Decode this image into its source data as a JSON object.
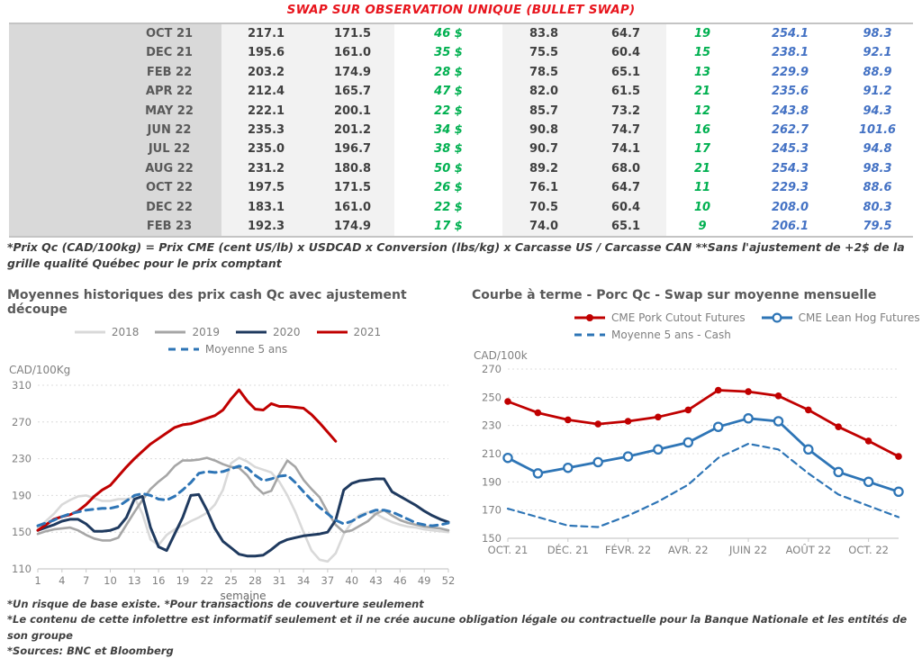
{
  "title": "SWAP SUR OBSERVATION UNIQUE (BULLET SWAP)",
  "colors": {
    "title_red": "#e8151d",
    "positive_green": "#00b050",
    "futures_blue": "#4472c4",
    "red_series": "#c00000",
    "navy_series": "#1f3a5f",
    "blue_dashed": "#2e75b6",
    "gray_2019": "#a6a6a6",
    "light_gray_2018": "#d9d9d9"
  },
  "table": {
    "rows": [
      {
        "month": "OCT 21",
        "cells": [
          "217.1",
          "171.5",
          "46 $",
          "83.8",
          "64.7",
          "19",
          "254.1",
          "98.3"
        ]
      },
      {
        "month": "DEC 21",
        "cells": [
          "195.6",
          "161.0",
          "35 $",
          "75.5",
          "60.4",
          "15",
          "238.1",
          "92.1"
        ]
      },
      {
        "month": "FEB 22",
        "cells": [
          "203.2",
          "174.9",
          "28 $",
          "78.5",
          "65.1",
          "13",
          "229.9",
          "88.9"
        ]
      },
      {
        "month": "APR 22",
        "cells": [
          "212.4",
          "165.7",
          "47 $",
          "82.0",
          "61.5",
          "21",
          "235.6",
          "91.2"
        ]
      },
      {
        "month": "MAY 22",
        "cells": [
          "222.1",
          "200.1",
          "22 $",
          "85.7",
          "73.2",
          "12",
          "243.8",
          "94.3"
        ]
      },
      {
        "month": "JUN 22",
        "cells": [
          "235.3",
          "201.2",
          "34 $",
          "90.8",
          "74.7",
          "16",
          "262.7",
          "101.6"
        ]
      },
      {
        "month": "JUL 22",
        "cells": [
          "235.0",
          "196.7",
          "38 $",
          "90.7",
          "74.1",
          "17",
          "245.3",
          "94.8"
        ]
      },
      {
        "month": "AUG 22",
        "cells": [
          "231.2",
          "180.8",
          "50 $",
          "89.2",
          "68.0",
          "21",
          "254.3",
          "98.3"
        ]
      },
      {
        "month": "OCT 22",
        "cells": [
          "197.5",
          "171.5",
          "26 $",
          "76.1",
          "64.7",
          "11",
          "229.3",
          "88.6"
        ]
      },
      {
        "month": "DEC 22",
        "cells": [
          "183.1",
          "161.0",
          "22 $",
          "70.5",
          "60.4",
          "10",
          "208.0",
          "80.3"
        ]
      },
      {
        "month": "FEB 23",
        "cells": [
          "192.3",
          "174.9",
          "17 $",
          "74.0",
          "65.1",
          "9",
          "206.1",
          "79.5"
        ]
      }
    ]
  },
  "table_footnote": "*Prix Qc (CAD/100kg) = Prix CME (cent US/lb) x USDCAD x Conversion (lbs/kg) x Carcasse US / Carcasse CAN **Sans l'ajustement de +2$ de la grille qualité Québec pour le prix comptant",
  "chart_data": [
    {
      "type": "line",
      "title": "Moyennes historiques des prix cash Qc avec ajustement découpe",
      "y_unit": "CAD/100Kg",
      "xlabel": "semaine",
      "ylim": [
        110,
        310
      ],
      "yticks": [
        110,
        150,
        190,
        230,
        270,
        310
      ],
      "x_count": 52,
      "xticks": [
        {
          "i": 0,
          "label": "1"
        },
        {
          "i": 3,
          "label": "4"
        },
        {
          "i": 6,
          "label": "7"
        },
        {
          "i": 9,
          "label": "10"
        },
        {
          "i": 12,
          "label": "13"
        },
        {
          "i": 15,
          "label": "16"
        },
        {
          "i": 18,
          "label": "19"
        },
        {
          "i": 21,
          "label": "22"
        },
        {
          "i": 24,
          "label": "25"
        },
        {
          "i": 27,
          "label": "28"
        },
        {
          "i": 30,
          "label": "31"
        },
        {
          "i": 33,
          "label": "34"
        },
        {
          "i": 36,
          "label": "37"
        },
        {
          "i": 39,
          "label": "40"
        },
        {
          "i": 42,
          "label": "43"
        },
        {
          "i": 45,
          "label": "46"
        },
        {
          "i": 48,
          "label": "49"
        },
        {
          "i": 51,
          "label": "52"
        }
      ],
      "grid": true,
      "legend_position": "top",
      "series": [
        {
          "name": "2018",
          "color": "#d9d9d9",
          "width": 2.6,
          "values": [
            155,
            162,
            170,
            180,
            185,
            189,
            190,
            187,
            184,
            184,
            186,
            186,
            188,
            170,
            142,
            136,
            147,
            153,
            157,
            162,
            166,
            171,
            180,
            196,
            225,
            231,
            227,
            221,
            218,
            215,
            205,
            190,
            172,
            150,
            130,
            120,
            118,
            127,
            148,
            161,
            169,
            172,
            170,
            165,
            161,
            158,
            156,
            155,
            153,
            152,
            151,
            150
          ]
        },
        {
          "name": "2019",
          "color": "#a6a6a6",
          "width": 2.6,
          "values": [
            148,
            151,
            153,
            154,
            155,
            152,
            147,
            143,
            141,
            141,
            144,
            158,
            172,
            185,
            197,
            205,
            212,
            222,
            228,
            228,
            229,
            231,
            228,
            224,
            221,
            220,
            212,
            200,
            192,
            195,
            213,
            228,
            221,
            207,
            197,
            188,
            172,
            158,
            150,
            152,
            157,
            162,
            170,
            174,
            168,
            163,
            160,
            158,
            156,
            155,
            154,
            152
          ]
        },
        {
          "name": "2020",
          "color": "#1f3a5f",
          "width": 3,
          "values": [
            152,
            155,
            158,
            162,
            164,
            164,
            159,
            151,
            151,
            152,
            155,
            166,
            186,
            189,
            155,
            134,
            130,
            148,
            166,
            190,
            191,
            174,
            154,
            140,
            133,
            126,
            124,
            124,
            125,
            131,
            138,
            142,
            144,
            146,
            147,
            148,
            150,
            163,
            196,
            203,
            206,
            207,
            208,
            208,
            194,
            189,
            184,
            179,
            173,
            168,
            164,
            161
          ]
        },
        {
          "name": "2021",
          "color": "#c00000",
          "width": 3,
          "values": [
            152,
            158,
            164,
            167,
            169,
            173,
            180,
            189,
            196,
            201,
            211,
            221,
            230,
            238,
            246,
            252,
            258,
            264,
            267,
            268,
            271,
            274,
            277,
            283,
            295,
            305,
            293,
            284,
            283,
            290,
            287,
            287,
            286,
            285,
            278,
            269,
            259,
            249,
            null,
            null,
            null,
            null,
            null,
            null,
            null,
            null,
            null,
            null,
            null,
            null,
            null,
            null
          ]
        },
        {
          "name": "Moyenne 5 ans",
          "color": "#2e75b6",
          "width": 3,
          "dash": "8,6",
          "values": [
            157,
            160,
            163,
            167,
            170,
            172,
            174,
            175,
            176,
            176,
            178,
            184,
            190,
            192,
            190,
            186,
            185,
            189,
            196,
            204,
            214,
            216,
            215,
            216,
            219,
            222,
            220,
            212,
            206,
            208,
            211,
            212,
            204,
            194,
            185,
            177,
            170,
            163,
            159,
            162,
            167,
            171,
            174,
            174,
            172,
            168,
            164,
            160,
            158,
            157,
            158,
            160
          ]
        }
      ]
    },
    {
      "type": "line",
      "title": "Courbe à terme - Porc Qc - Swap sur moyenne mensuelle",
      "y_unit": "CAD/100k",
      "xlabel": "",
      "ylim": [
        150,
        270
      ],
      "yticks": [
        150,
        170,
        190,
        210,
        230,
        250,
        270
      ],
      "x_count": 14,
      "xticks": [
        {
          "i": 0,
          "label": "OCT. 21"
        },
        {
          "i": 2,
          "label": "DÉC. 21"
        },
        {
          "i": 4,
          "label": "FÉVR. 22"
        },
        {
          "i": 6,
          "label": "AVR. 22"
        },
        {
          "i": 8,
          "label": "JUIN 22"
        },
        {
          "i": 10,
          "label": "AOÛT 22"
        },
        {
          "i": 12,
          "label": "OCT. 22"
        }
      ],
      "grid": true,
      "legend_position": "top",
      "series": [
        {
          "name": "CME Pork Cutout Futures",
          "color": "#c00000",
          "width": 2.8,
          "marker": "filled",
          "values": [
            247,
            239,
            234,
            231,
            233,
            236,
            241,
            255,
            254,
            251,
            241,
            229,
            219,
            208
          ]
        },
        {
          "name": "CME Lean Hog Futures",
          "color": "#2e75b6",
          "width": 2.8,
          "marker": "open",
          "values": [
            207,
            196,
            200,
            204,
            208,
            213,
            218,
            229,
            235,
            233,
            213,
            197,
            190,
            183
          ]
        },
        {
          "name": "Moyenne 5 ans - Cash",
          "color": "#2e75b6",
          "width": 2.2,
          "dash": "7,5",
          "values": [
            171,
            165,
            159,
            158,
            166,
            176,
            188,
            207,
            217,
            213,
            196,
            181,
            173,
            165
          ]
        }
      ]
    }
  ],
  "footnotes": [
    "*Un risque de base existe. *Pour transactions de couverture seulement",
    "*Le contenu de cette infolettre est informatif seulement et il ne crée aucune obligation légale ou contractuelle pour la Banque Nationale et les entités de son groupe",
    "*Sources: BNC et Bloomberg"
  ]
}
